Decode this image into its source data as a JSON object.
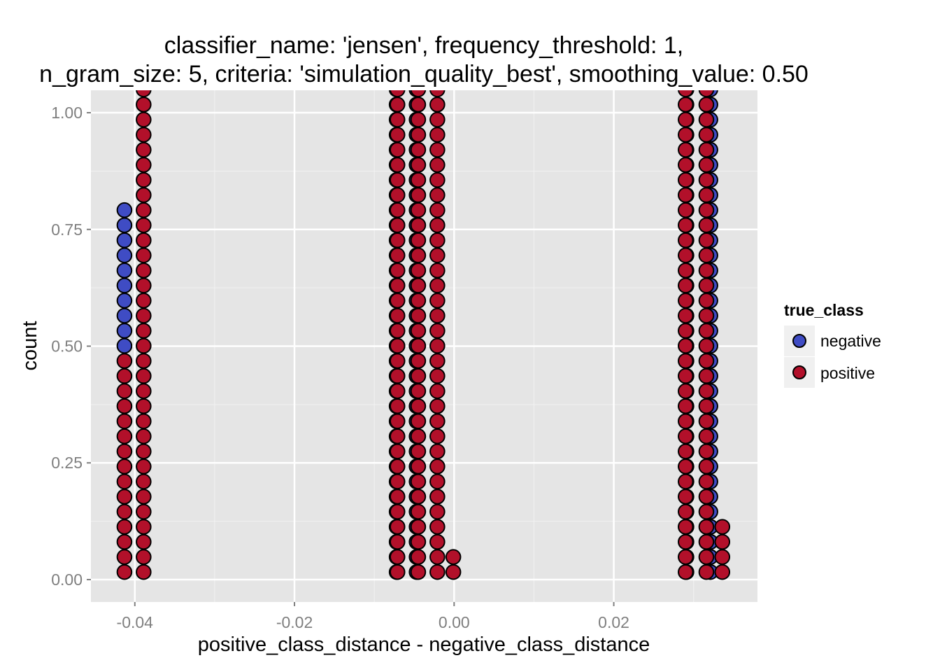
{
  "chart_data": {
    "type": "dotplot",
    "title": [
      "classifier_name: 'jensen', frequency_threshold: 1,",
      "n_gram_size: 5, criteria: 'simulation_quality_best', smoothing_value: 0.50"
    ],
    "xlabel": "positive_class_distance - negative_class_distance",
    "ylabel": "count",
    "xlim": [
      -0.0455,
      0.038
    ],
    "ylim": [
      -0.048,
      1.048
    ],
    "x_ticks": [
      {
        "value": -0.04,
        "label": "-0.04"
      },
      {
        "value": -0.02,
        "label": "-0.02"
      },
      {
        "value": 0.0,
        "label": "0.00"
      },
      {
        "value": 0.02,
        "label": "0.02"
      }
    ],
    "y_ticks": [
      {
        "value": 0.0,
        "label": "0.00"
      },
      {
        "value": 0.25,
        "label": "0.25"
      },
      {
        "value": 0.5,
        "label": "0.50"
      },
      {
        "value": 0.75,
        "label": "0.75"
      },
      {
        "value": 1.0,
        "label": "1.00"
      }
    ],
    "grid": true,
    "legend": {
      "title": "true_class",
      "position": "right",
      "entries": [
        {
          "label": "negative",
          "color": "#3f4cc4"
        },
        {
          "label": "positive",
          "color": "#b2102a"
        }
      ]
    },
    "dot_count_step": 0.0323,
    "dot_columns": [
      {
        "x": -0.0413,
        "stack": [
          {
            "class": "positive",
            "n": 15
          },
          {
            "class": "negative",
            "n": 10
          }
        ]
      },
      {
        "x": -0.0389,
        "stack": [
          {
            "class": "positive",
            "n": 35
          }
        ]
      },
      {
        "x": -0.0072,
        "stack": [
          {
            "class": "negative",
            "n": 35
          }
        ]
      },
      {
        "x": -0.0071,
        "stack": [
          {
            "class": "positive",
            "n": 35
          }
        ]
      },
      {
        "x": -0.0047,
        "stack": [
          {
            "class": "negative",
            "n": 35
          }
        ]
      },
      {
        "x": -0.0045,
        "stack": [
          {
            "class": "positive",
            "n": 35
          }
        ]
      },
      {
        "x": -0.0021,
        "stack": [
          {
            "class": "positive",
            "n": 35
          }
        ]
      },
      {
        "x": -0.0001,
        "stack": [
          {
            "class": "positive",
            "n": 2
          }
        ]
      },
      {
        "x": 0.0291,
        "stack": [
          {
            "class": "negative",
            "n": 35
          }
        ]
      },
      {
        "x": 0.029,
        "stack": [
          {
            "class": "positive",
            "n": 35
          }
        ]
      },
      {
        "x": 0.0321,
        "stack": [
          {
            "class": "negative",
            "n": 35
          }
        ]
      },
      {
        "x": 0.0316,
        "stack": [
          {
            "class": "positive",
            "n": 35
          }
        ]
      },
      {
        "x": 0.0336,
        "stack": [
          {
            "class": "positive",
            "n": 4
          }
        ]
      }
    ]
  }
}
